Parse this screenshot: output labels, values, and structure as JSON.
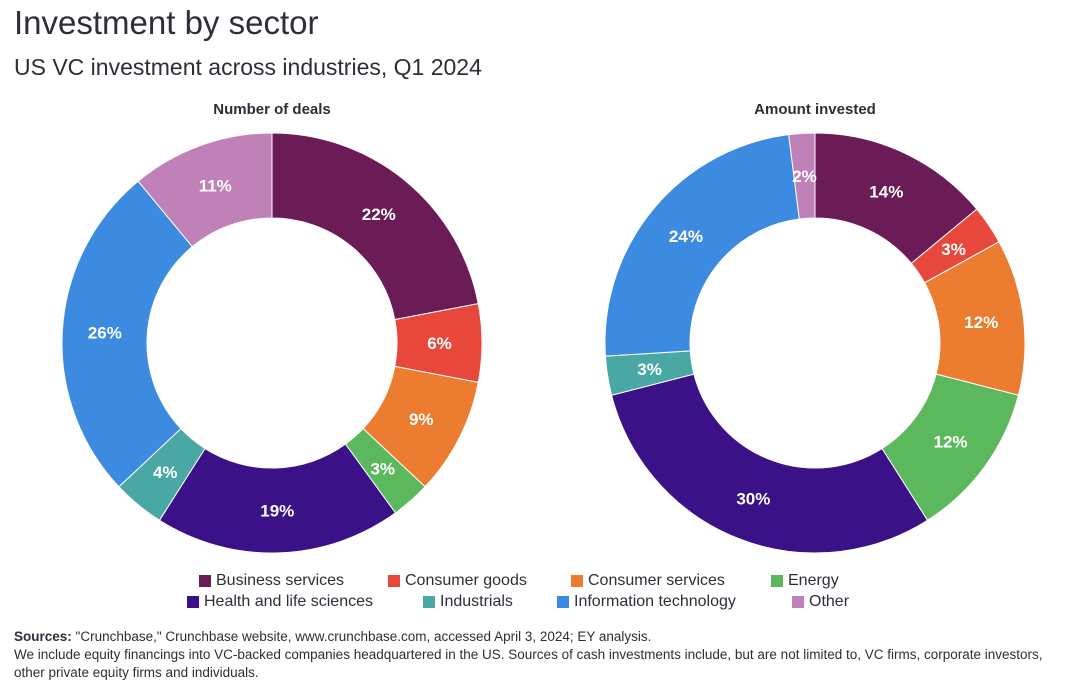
{
  "title": "Investment by sector",
  "subtitle": "US VC investment across industries, Q1 2024",
  "chart_data": [
    {
      "type": "pie",
      "title": "Number of deals",
      "categories": [
        "Business services",
        "Consumer goods",
        "Consumer services",
        "Energy",
        "Health and life sciences",
        "Industrials",
        "Information technology",
        "Other"
      ],
      "values": [
        22,
        6,
        9,
        3,
        19,
        4,
        26,
        11
      ],
      "labels": [
        "22%",
        "6%",
        "9%",
        "3%",
        "19%",
        "4%",
        "26%",
        "11%"
      ]
    },
    {
      "type": "pie",
      "title": "Amount invested",
      "categories": [
        "Business services",
        "Consumer goods",
        "Consumer services",
        "Energy",
        "Health and life sciences",
        "Industrials",
        "Information technology",
        "Other"
      ],
      "values": [
        14,
        3,
        12,
        12,
        30,
        3,
        24,
        2
      ],
      "labels": [
        "14%",
        "3%",
        "12%",
        "12%",
        "30%",
        "3%",
        "24%",
        "2%"
      ]
    }
  ],
  "legend": {
    "row1": [
      "Business services",
      "Consumer goods",
      "Consumer services",
      "Energy"
    ],
    "row2": [
      "Health and life sciences",
      "Industrials",
      "Information technology",
      "Other"
    ]
  },
  "colors": {
    "Business services": "#6b1b55",
    "Consumer goods": "#e8473c",
    "Consumer services": "#ec7c30",
    "Energy": "#5cb85c",
    "Health and life sciences": "#3a1187",
    "Industrials": "#4aa8a4",
    "Information technology": "#3d8be0",
    "Other": "#c080b8"
  },
  "notes": {
    "sources_label": "Sources:",
    "sources_text": " \"Crunchbase,\" Crunchbase website, www.crunchbase.com, accessed April 3, 2024; EY analysis.",
    "footnote": "We include equity financings into VC-backed companies headquartered in the US. Sources of cash investments include, but are not limited to, VC firms, corporate investors, other private equity firms and individuals."
  }
}
